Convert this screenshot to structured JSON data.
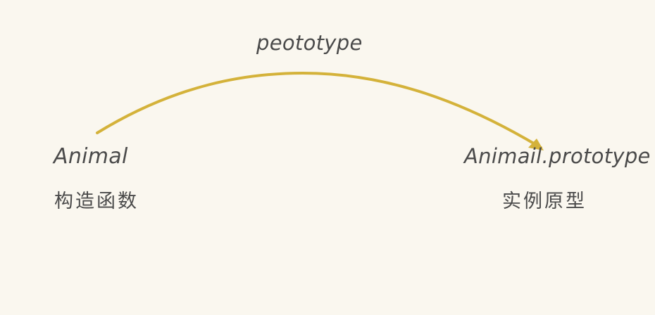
{
  "diagram": {
    "edge_label": "peototype",
    "left_node": {
      "title": "Animal",
      "subtitle": "构造函数"
    },
    "right_node": {
      "title": "Animail.prototype",
      "subtitle": "实例原型"
    },
    "arrow_color": "#d4b23a",
    "background_color": "#faf7ef",
    "text_color": "#4a4a4a"
  }
}
